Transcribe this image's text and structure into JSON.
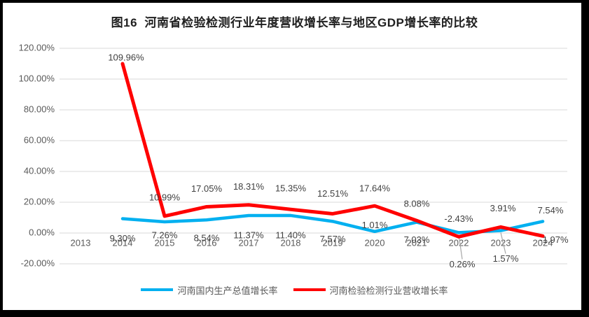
{
  "chart_data": {
    "type": "line",
    "title": "图16  河南省检验检测行业年度营收增长率与地区GDP增长率的比较",
    "categories": [
      "2013",
      "2014",
      "2015",
      "2016",
      "2017",
      "2018",
      "2019",
      "2020",
      "2021",
      "2022",
      "2023",
      "2024"
    ],
    "ylim": [
      -20,
      120
    ],
    "grid": "horizontal",
    "legend_position": "bottom",
    "y_ticks": [
      {
        "value": 120,
        "label": "120.00%"
      },
      {
        "value": 100,
        "label": "100.00%"
      },
      {
        "value": 80,
        "label": "80.00%"
      },
      {
        "value": 60,
        "label": "60.00%"
      },
      {
        "value": 40,
        "label": "40.00%"
      },
      {
        "value": 20,
        "label": "20.00%"
      },
      {
        "value": 0,
        "label": "0.00%"
      },
      {
        "value": -20,
        "label": "-20.00%"
      }
    ],
    "series": [
      {
        "name": "河南国内生产总值增长率",
        "color": "#00B0F0",
        "points": [
          {
            "category": "2014",
            "value": 9.3,
            "label": "9.30%",
            "dx": 0,
            "dy": 29
          },
          {
            "category": "2015",
            "value": 7.26,
            "label": "7.26%",
            "dx": 0,
            "dy": 20
          },
          {
            "category": "2016",
            "value": 8.54,
            "label": "8.54%",
            "dx": 0,
            "dy": 27
          },
          {
            "category": "2017",
            "value": 11.37,
            "label": "11.37%",
            "dx": 0,
            "dy": 29
          },
          {
            "category": "2018",
            "value": 11.4,
            "label": "11.40%",
            "dx": 0,
            "dy": 29
          },
          {
            "category": "2019",
            "value": 7.57,
            "label": "7.57%",
            "dx": 0,
            "dy": 26
          },
          {
            "category": "2020",
            "value": 1.01,
            "label": "1.01%",
            "dx": 0,
            "dy": -8
          },
          {
            "category": "2021",
            "value": 7.03,
            "label": "7.03%",
            "dx": 0,
            "dy": 26
          },
          {
            "category": "2022",
            "value": 0.26,
            "label": "0.26%",
            "dx": 5,
            "dy": 46,
            "leader": true
          },
          {
            "category": "2023",
            "value": 1.57,
            "label": "1.57%",
            "dx": 7,
            "dy": 41,
            "leader": true
          },
          {
            "category": "2024",
            "value": 7.54,
            "label": "7.54%",
            "dx": 11,
            "dy": -15
          }
        ]
      },
      {
        "name": "河南检验检测行业营收增长率",
        "color": "#FF0000",
        "points": [
          {
            "category": "2014",
            "value": 109.96,
            "label": "109.96%",
            "dx": 5,
            "dy": -8
          },
          {
            "category": "2015",
            "value": 10.99,
            "label": "10.99%",
            "dx": 0,
            "dy": -26
          },
          {
            "category": "2016",
            "value": 17.05,
            "label": "17.05%",
            "dx": 0,
            "dy": -25
          },
          {
            "category": "2017",
            "value": 18.31,
            "label": "18.31%",
            "dx": 0,
            "dy": -25
          },
          {
            "category": "2018",
            "value": 15.35,
            "label": "15.35%",
            "dx": 0,
            "dy": -29
          },
          {
            "category": "2019",
            "value": 12.51,
            "label": "12.51%",
            "dx": 0,
            "dy": -28
          },
          {
            "category": "2020",
            "value": 17.64,
            "label": "17.64%",
            "dx": 0,
            "dy": -24
          },
          {
            "category": "2021",
            "value": 8.08,
            "label": "8.08%",
            "dx": 0,
            "dy": -23
          },
          {
            "category": "2022",
            "value": -2.43,
            "label": "-2.43%",
            "dx": 0,
            "dy": -25
          },
          {
            "category": "2023",
            "value": 3.91,
            "label": "3.91%",
            "dx": 3,
            "dy": -26
          },
          {
            "category": "2024",
            "value": -1.97,
            "label": "-1.97%",
            "dx": 16,
            "dy": 6
          }
        ]
      }
    ],
    "colors": {
      "grid": "#D9D9D9",
      "axis_text": "#595959",
      "data_label_text": "#404040",
      "leader_line": "#A6A6A6",
      "frame_border": "#000000",
      "background": "#FFFFFF"
    }
  }
}
